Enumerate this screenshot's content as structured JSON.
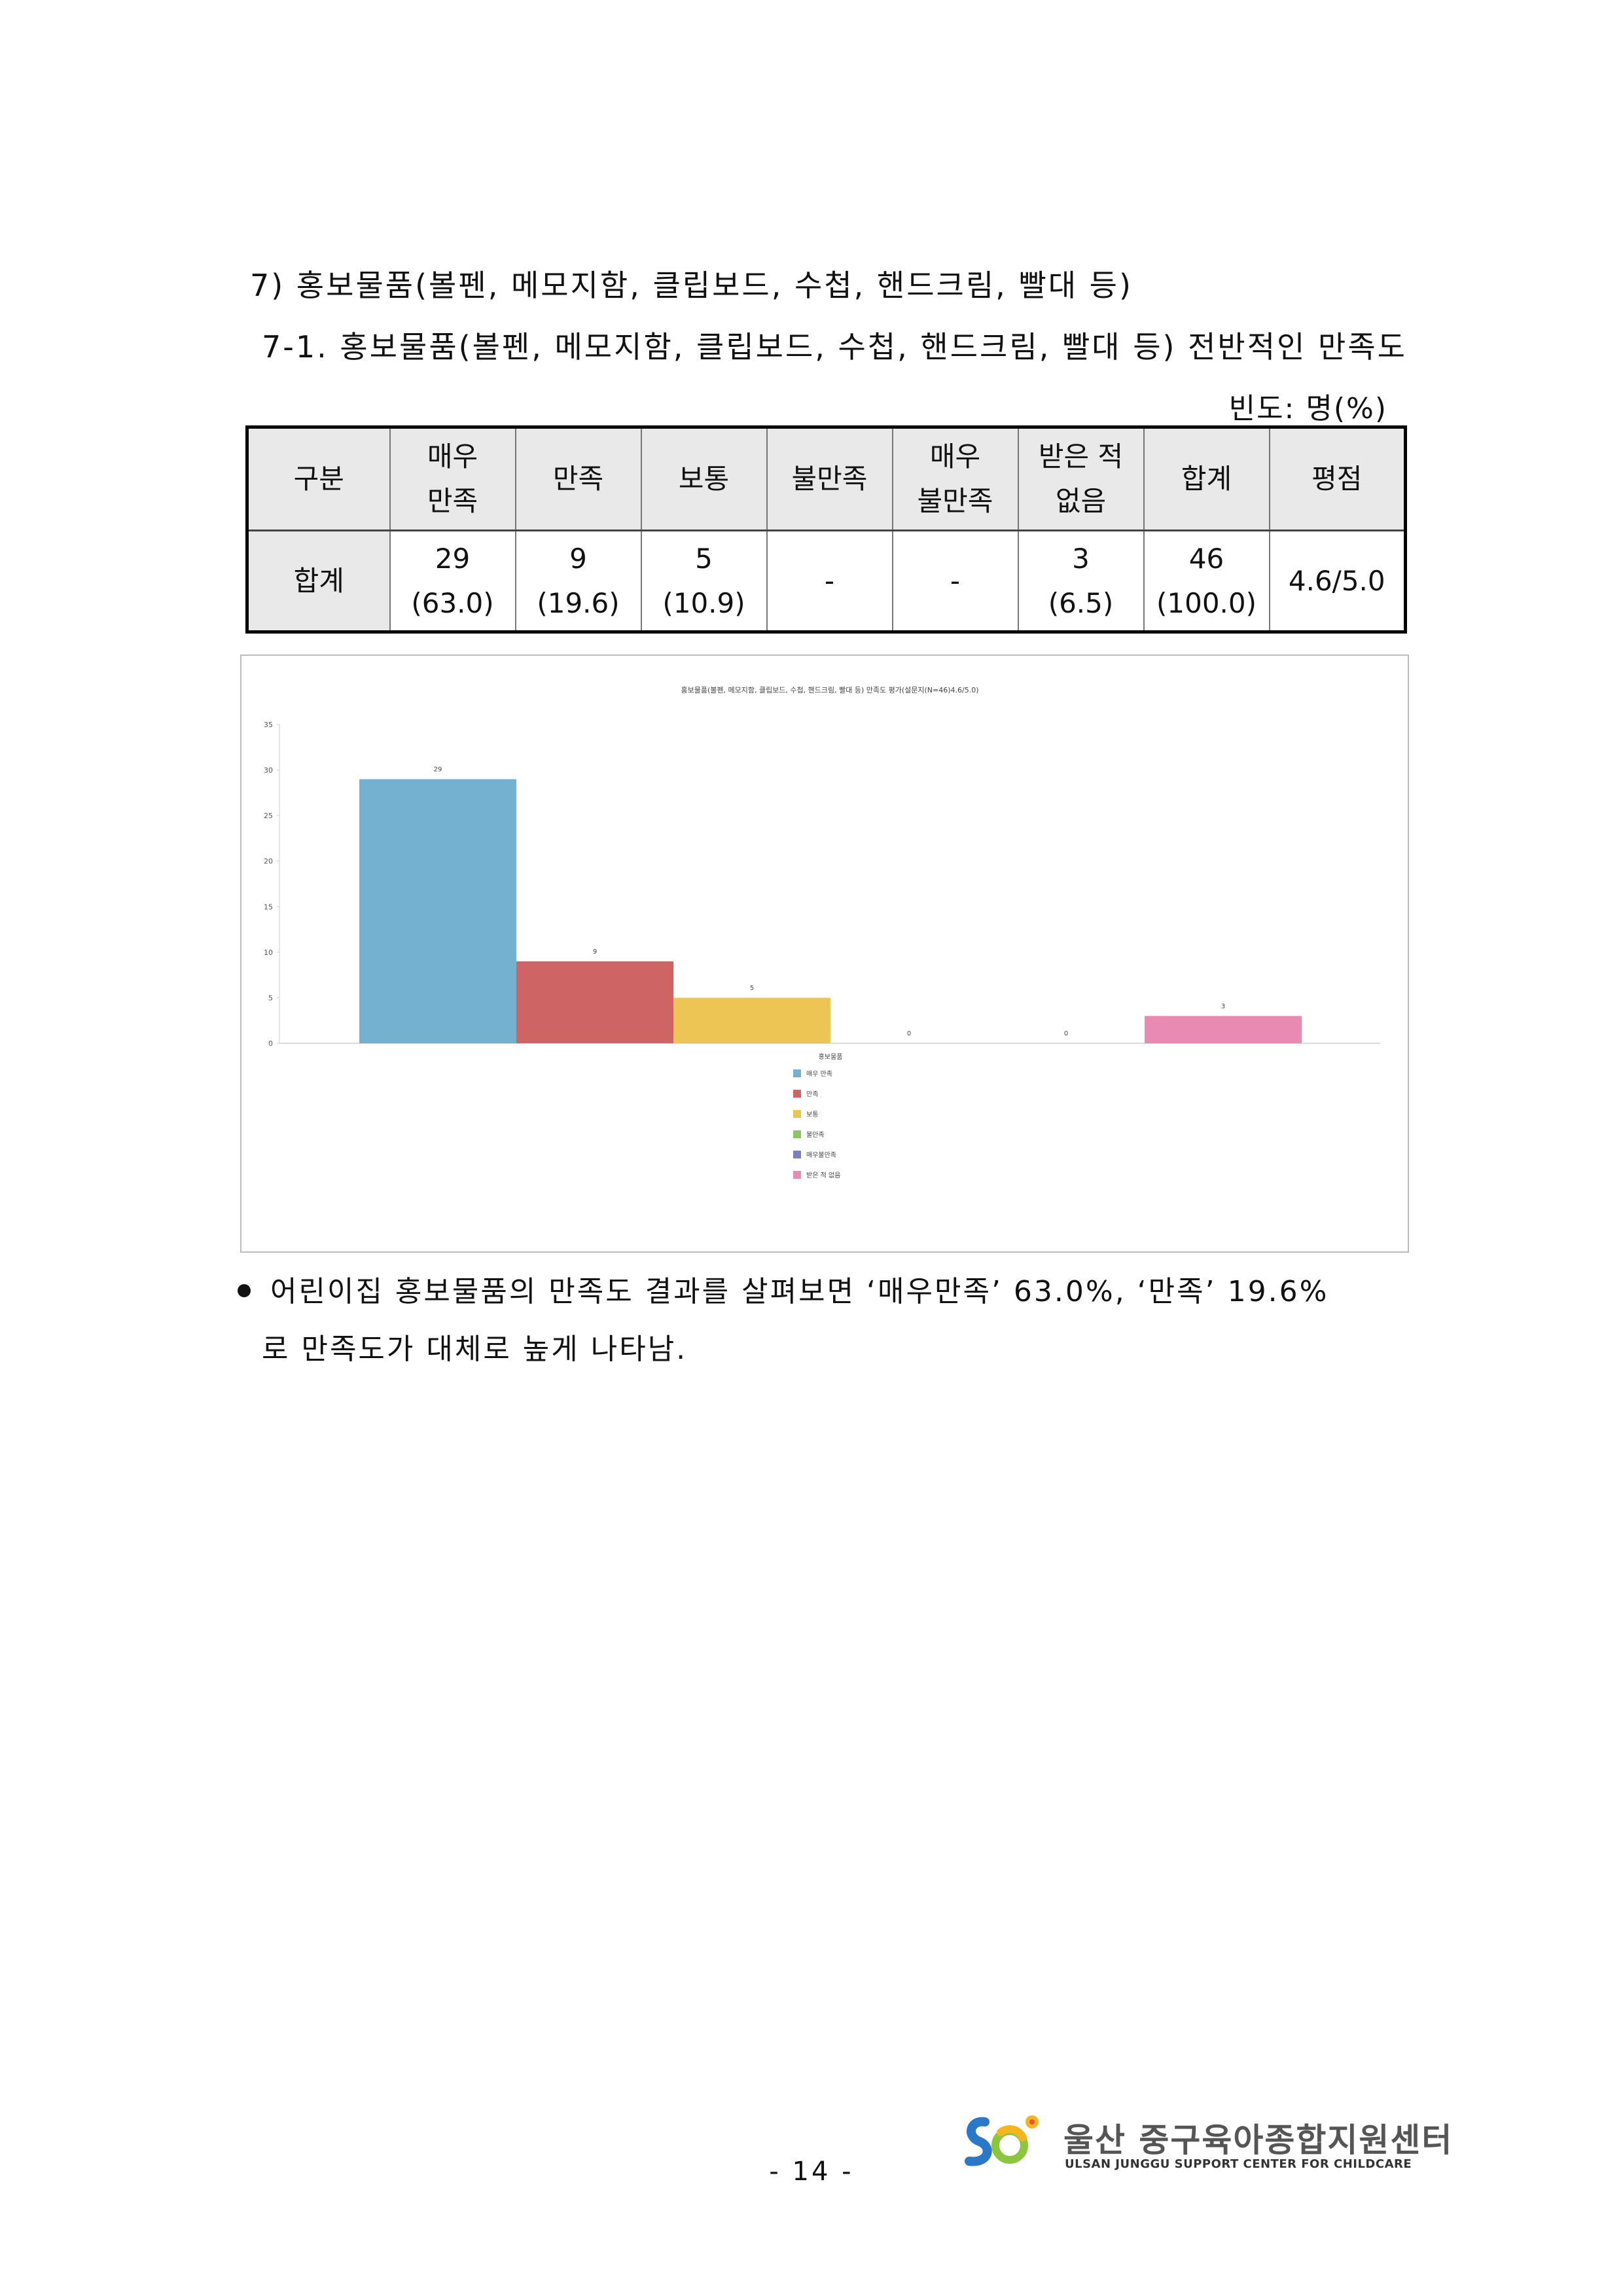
{
  "heading1": "7) 홍보물품(볼펜, 메모지함, 클립보드, 수첩, 핸드크림, 빨대 등)",
  "heading2": "7-1. 홍보물품(볼펜, 메모지함, 클립보드, 수첩, 핸드크림, 빨대 등) 전반적인 만족도",
  "unit_label": "빈도: 명(%)",
  "table": {
    "headers": [
      "구분",
      "매우\n만족",
      "만족",
      "보통",
      "불만족",
      "매우\n불만족",
      "받은 적\n없음",
      "합계",
      "평점"
    ],
    "row": {
      "label": "합계",
      "cells": [
        "29\n(63.0)",
        "9\n(19.6)",
        "5\n(10.9)",
        "-",
        "-",
        "3\n(6.5)",
        "46\n(100.0)",
        "4.6/5.0"
      ]
    }
  },
  "chart_data": {
    "type": "bar",
    "title": "홍보물품(볼펜, 메모지함, 클립보드, 수첩, 핸드크림, 빨대 등) 만족도 평가(설문지(N=46)4.6/5.0)",
    "xlabel": "홍보물품",
    "ylabel": "",
    "ylim": [
      0,
      35
    ],
    "yticks": [
      0,
      5,
      10,
      15,
      20,
      25,
      30,
      35
    ],
    "grid": false,
    "legend_position": "bottom",
    "series": [
      {
        "name": "매우 만족",
        "value": 29,
        "color": "#74b1d1"
      },
      {
        "name": "만족",
        "value": 9,
        "color": "#cf6464"
      },
      {
        "name": "보통",
        "value": 5,
        "color": "#ecc555"
      },
      {
        "name": "불만족",
        "value": 0,
        "color": "#8cc662"
      },
      {
        "name": "매우불만족",
        "value": 0,
        "color": "#7a80c4"
      },
      {
        "name": "받은 적 없음",
        "value": 3,
        "color": "#e88ab2"
      }
    ]
  },
  "summary_line1": "어린이집 홍보물품의 만족도 결과를 살펴보면 ‘매우만족’ 63.0%, ‘만족’ 19.6%",
  "summary_line2": "로 만족도가 대체로 높게 나타남.",
  "page_number": "- 14 -",
  "logo": {
    "name_kr": "울산 중구육아종합지원센터",
    "name_en": "ULSAN JUNGGU SUPPORT CENTER FOR CHILDCARE"
  }
}
